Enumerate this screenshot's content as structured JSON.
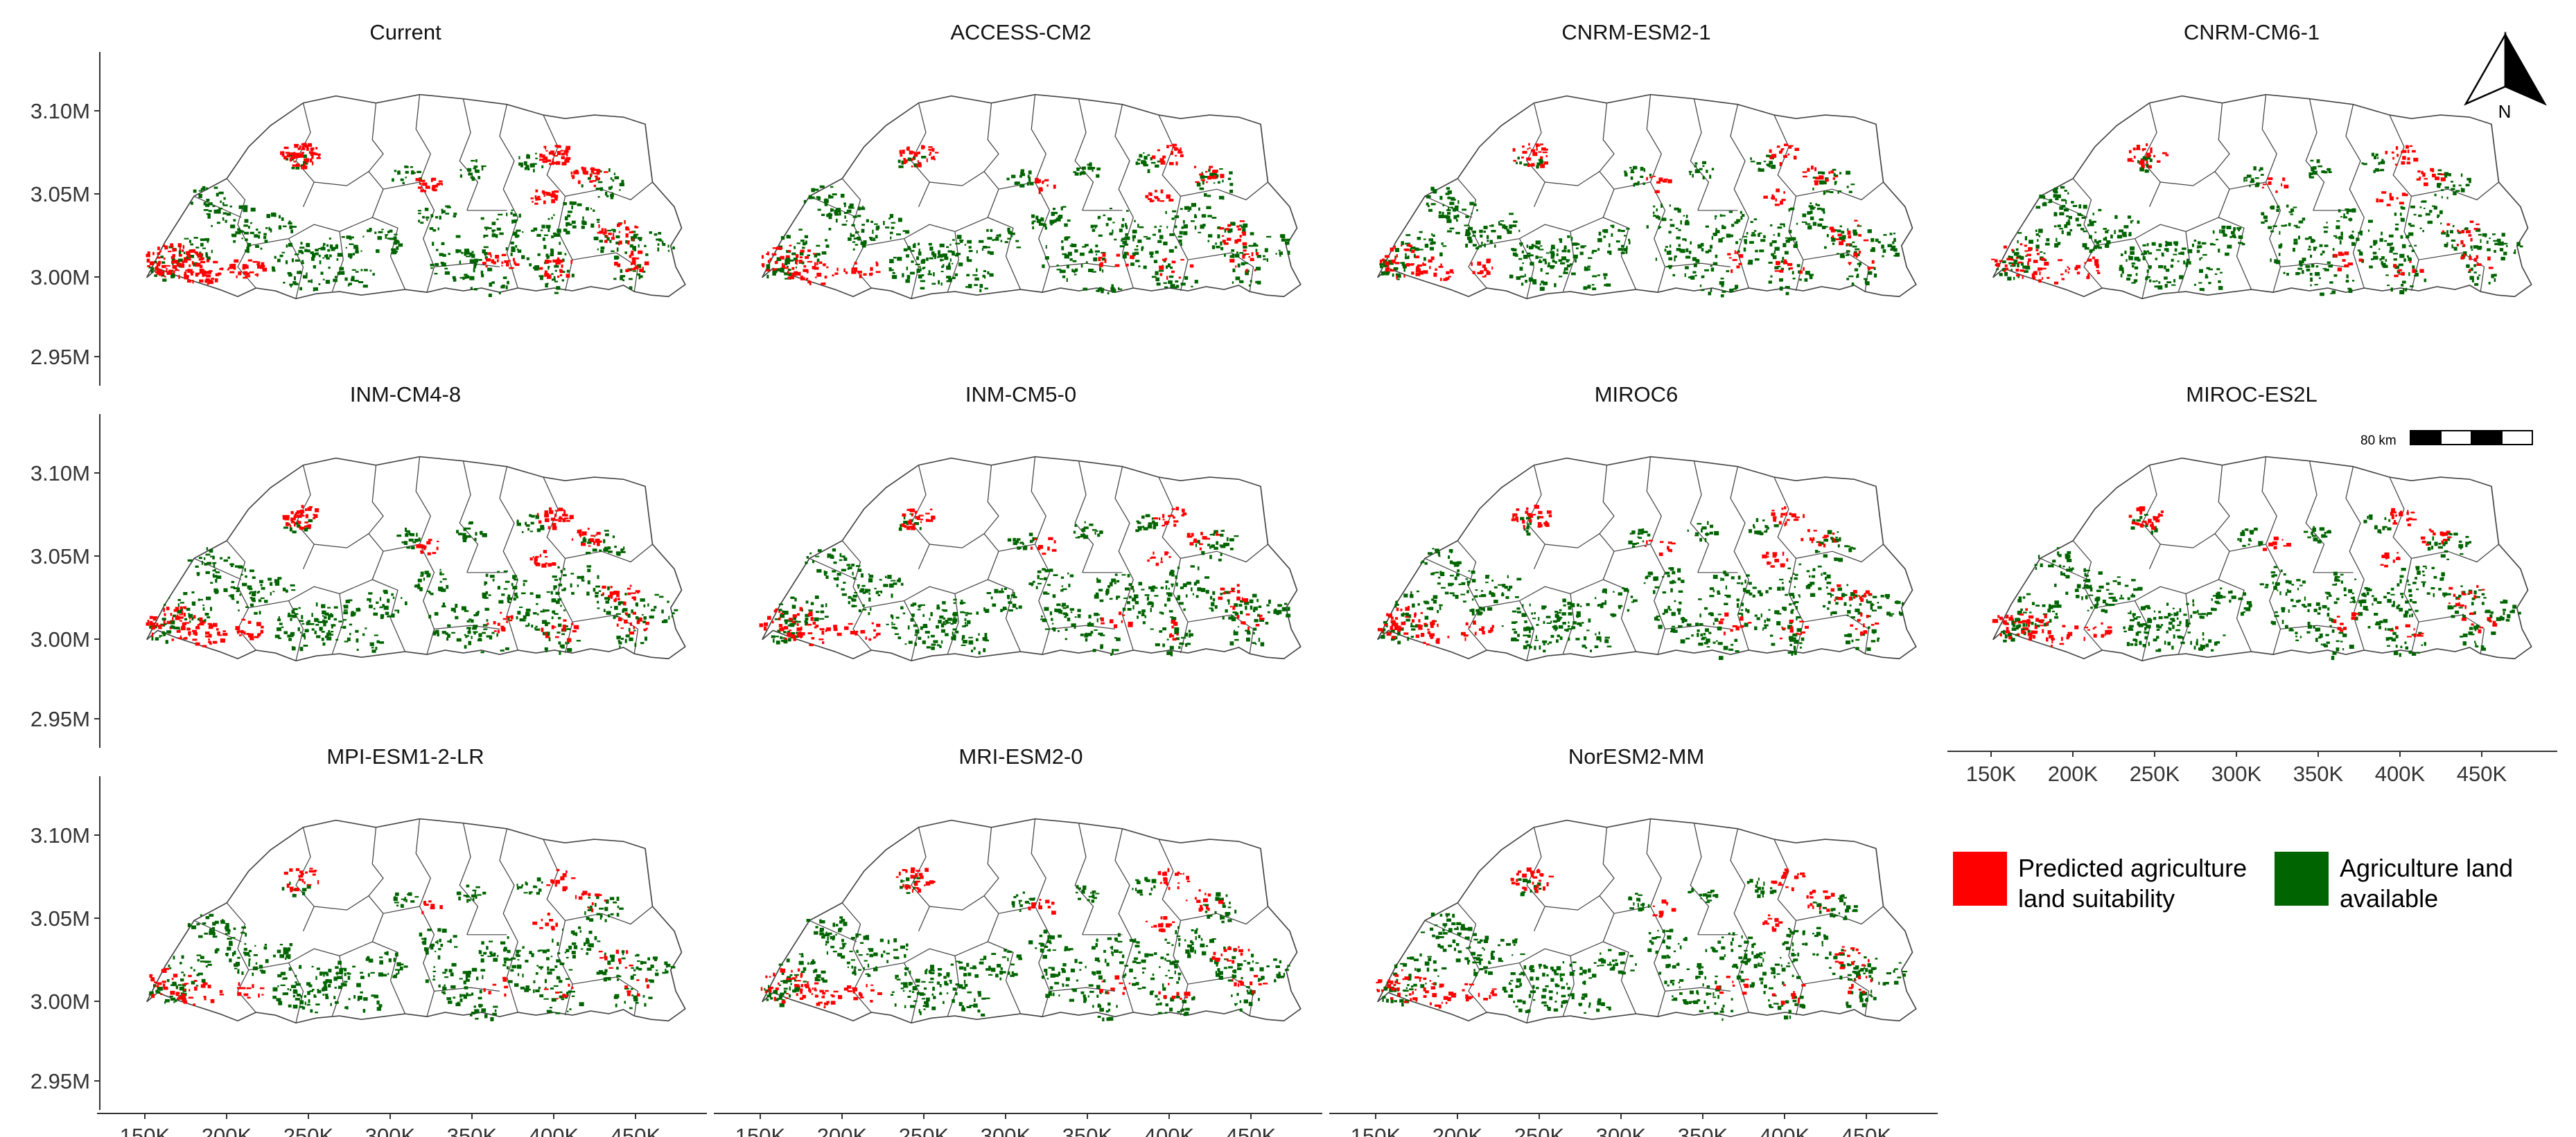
{
  "figure": {
    "panels": [
      {
        "title": "Current",
        "red_level": 1.0
      },
      {
        "title": "ACCESS-CM2",
        "red_level": 0.55
      },
      {
        "title": "CNRM-ESM2-1",
        "red_level": 0.45
      },
      {
        "title": "CNRM-CM6-1",
        "red_level": 0.45
      },
      {
        "title": "INM-CM4-8",
        "red_level": 0.7
      },
      {
        "title": "INM-CM5-0",
        "red_level": 0.45
      },
      {
        "title": "MIROC6",
        "red_level": 0.5
      },
      {
        "title": "MIROC-ES2L",
        "red_level": 0.45
      },
      {
        "title": "MPI-ESM1-2-LR",
        "red_level": 0.35
      },
      {
        "title": "MRI-ESM2-0",
        "red_level": 0.5
      },
      {
        "title": "NorESM2-MM",
        "red_level": 0.45
      }
    ],
    "y_ticks": [
      "3.10M",
      "3.05M",
      "3.00M",
      "2.95M"
    ],
    "x_ticks": [
      "150K",
      "200K",
      "250K",
      "300K",
      "350K",
      "400K",
      "450K"
    ],
    "scale_bar": {
      "label": "80 km"
    },
    "north_arrow": {
      "label": "N",
      "icon": "north-arrow-icon"
    },
    "legend": [
      {
        "color": "#ff0000",
        "line1": "Predicted agriculture",
        "line2": "land suitability"
      },
      {
        "color": "#006400",
        "line1": "Agriculture land",
        "line2": "available"
      }
    ],
    "colors": {
      "suitability": "#ff0000",
      "available": "#006400",
      "boundary": "#444444",
      "axis": "#333333"
    }
  }
}
